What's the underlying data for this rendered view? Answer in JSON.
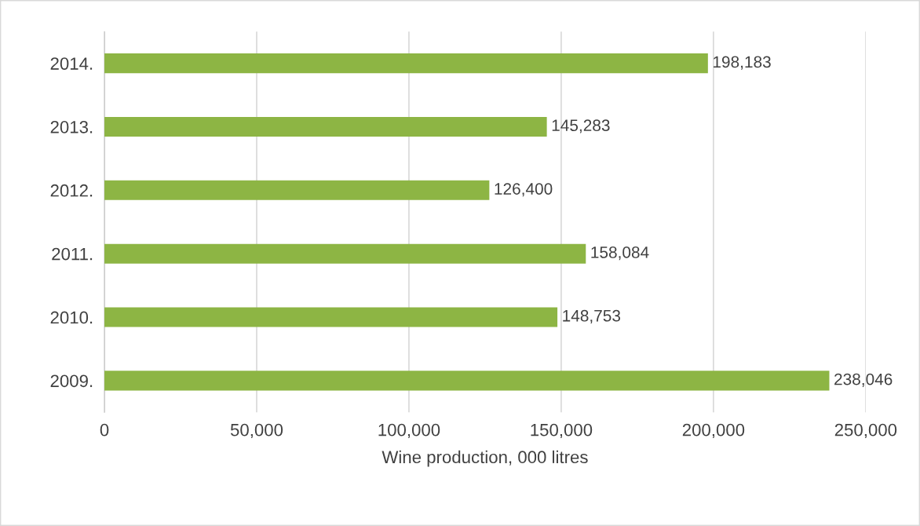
{
  "chart_data": {
    "type": "bar",
    "orientation": "horizontal",
    "categories": [
      "2014.",
      "2013.",
      "2012.",
      "2011.",
      "2010.",
      "2009."
    ],
    "values": [
      198183,
      145283,
      126400,
      158084,
      148753,
      238046
    ],
    "value_labels": [
      "198,183",
      "145,283",
      "126,400",
      "158,084",
      "148,753",
      "238,046"
    ],
    "color": "#8db544",
    "xlabel": "Wine production, 000 litres",
    "xlim": [
      0,
      250000
    ],
    "xticks": [
      0,
      {
        "value": 50000,
        "label": "50,000"
      },
      {
        "value": 100000,
        "label": "100,000"
      },
      {
        "value": 150000,
        "label": "150,000"
      },
      {
        "value": 200000,
        "label": "200,000"
      },
      {
        "value": 250000,
        "label": "250,000"
      }
    ],
    "grid": "x",
    "legend": false
  }
}
